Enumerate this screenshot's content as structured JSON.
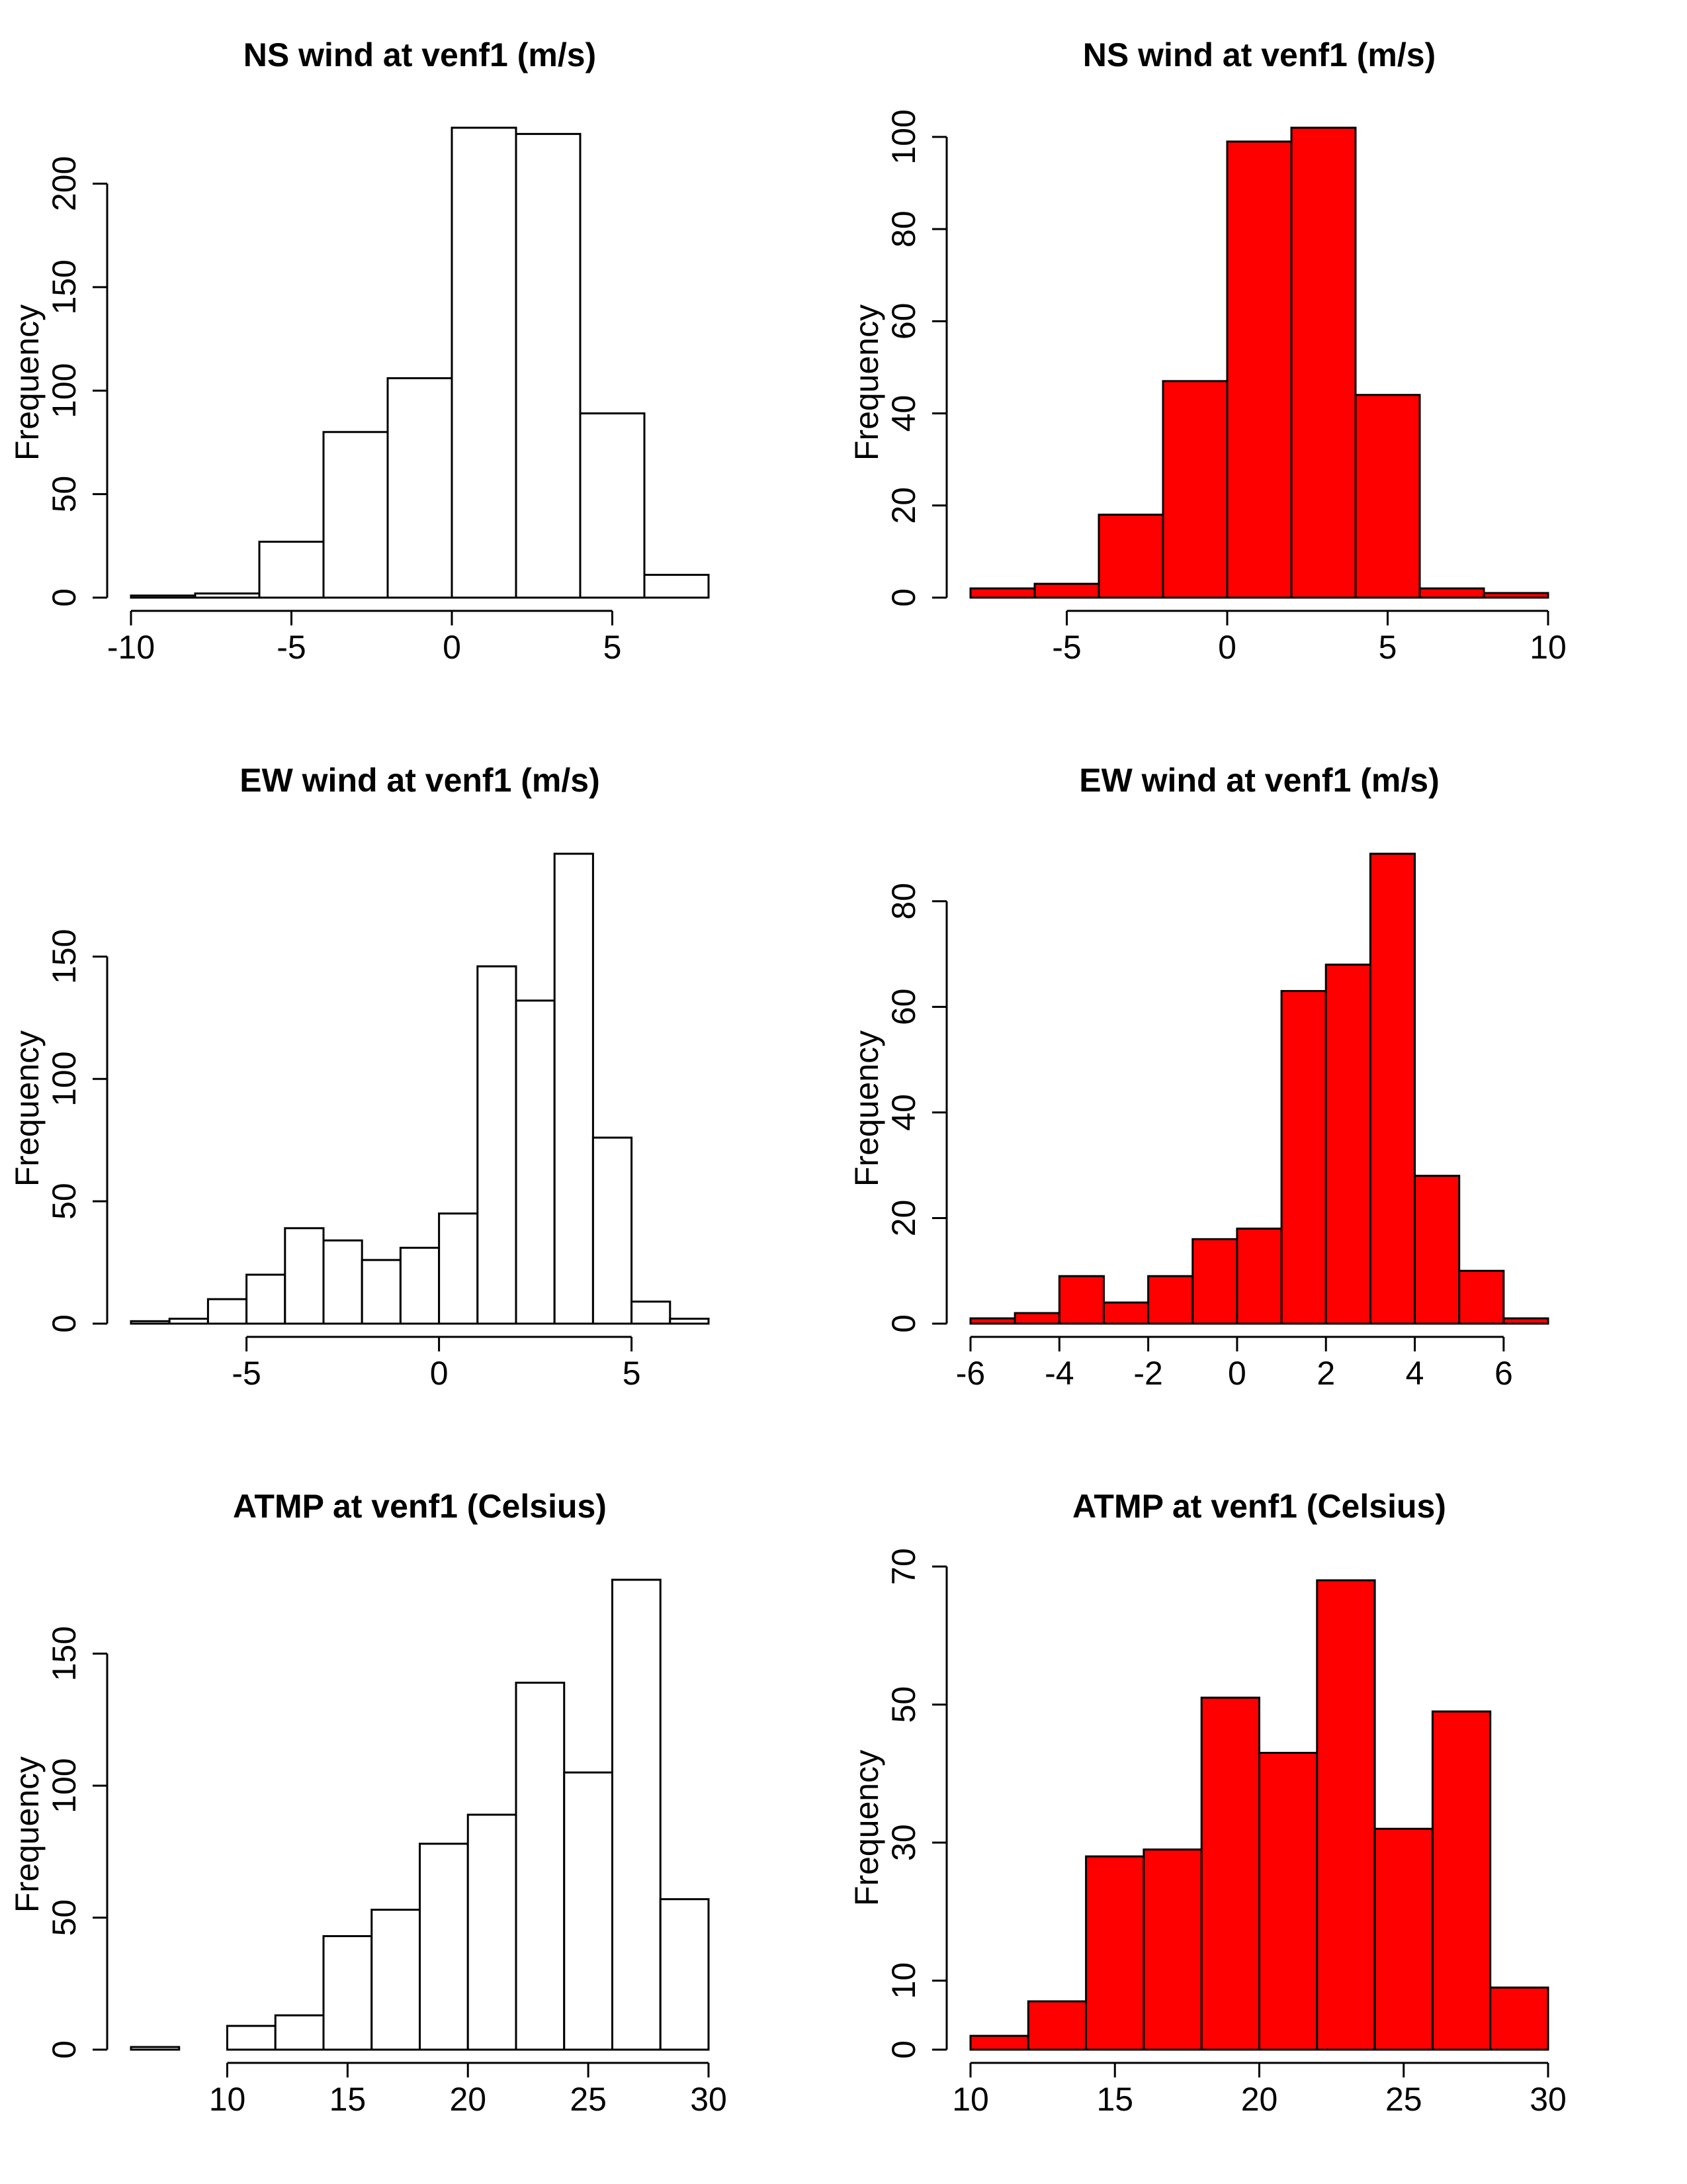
{
  "chart_data": [
    {
      "type": "bar",
      "title": "NS wind at venf1 (m/s)",
      "ylabel": "Frequency",
      "xlabel": "",
      "fill": "#ffffff",
      "bin_edges": [
        -10,
        -8,
        -6,
        -4,
        -2,
        0,
        2,
        4,
        6,
        8
      ],
      "values": [
        1,
        2,
        27,
        80,
        106,
        227,
        224,
        89,
        11
      ],
      "xticks": [
        -10,
        -5,
        0,
        5
      ],
      "xtick_labels": [
        "-10",
        "-5",
        "0",
        "5"
      ],
      "yticks": [
        0,
        50,
        100,
        150,
        200
      ],
      "ytick_labels": [
        "0",
        "50",
        "100",
        "150",
        "200"
      ]
    },
    {
      "type": "bar",
      "title": "NS wind at venf1 (m/s)",
      "ylabel": "Frequency",
      "xlabel": "",
      "fill": "#ff0000",
      "bin_edges": [
        -8,
        -6,
        -4,
        -2,
        0,
        2,
        4,
        6,
        8,
        10
      ],
      "values": [
        2,
        3,
        18,
        47,
        99,
        102,
        44,
        2,
        1
      ],
      "xticks": [
        -5,
        0,
        5,
        10
      ],
      "xtick_labels": [
        "-5",
        "0",
        "5",
        "10"
      ],
      "yticks": [
        0,
        20,
        40,
        60,
        80,
        100
      ],
      "ytick_labels": [
        "0",
        "20",
        "40",
        "60",
        "80",
        "100"
      ]
    },
    {
      "type": "bar",
      "title": "EW wind at venf1 (m/s)",
      "ylabel": "Frequency",
      "xlabel": "",
      "fill": "#ffffff",
      "bin_edges": [
        -8,
        -7,
        -6,
        -5,
        -4,
        -3,
        -2,
        -1,
        0,
        1,
        2,
        3,
        4,
        5,
        6,
        7
      ],
      "values": [
        1,
        2,
        10,
        20,
        39,
        34,
        26,
        31,
        45,
        146,
        132,
        192,
        76,
        9,
        2
      ],
      "xticks": [
        -5,
        0,
        5
      ],
      "xtick_labels": [
        "-5",
        "0",
        "5"
      ],
      "yticks": [
        0,
        50,
        100,
        150
      ],
      "ytick_labels": [
        "0",
        "50",
        "100",
        "150"
      ]
    },
    {
      "type": "bar",
      "title": "EW wind at venf1 (m/s)",
      "ylabel": "Frequency",
      "xlabel": "",
      "fill": "#ff0000",
      "bin_edges": [
        -6,
        -5,
        -4,
        -3,
        -2,
        -1,
        0,
        1,
        2,
        3,
        4,
        5,
        6,
        7
      ],
      "values": [
        1,
        2,
        9,
        4,
        9,
        16,
        18,
        63,
        68,
        89,
        28,
        10,
        1
      ],
      "xticks": [
        -6,
        -4,
        -2,
        0,
        2,
        4,
        6
      ],
      "xtick_labels": [
        "-6",
        "-4",
        "-2",
        "0",
        "2",
        "4",
        "6"
      ],
      "yticks": [
        0,
        20,
        40,
        60,
        80
      ],
      "ytick_labels": [
        "0",
        "20",
        "40",
        "60",
        "80"
      ]
    },
    {
      "type": "bar",
      "title": "ATMP at venf1 (Celsius)",
      "ylabel": "Frequency",
      "xlabel": "",
      "fill": "#ffffff",
      "bin_edges": [
        6,
        8,
        10,
        12,
        14,
        16,
        18,
        20,
        22,
        24,
        26,
        28,
        30
      ],
      "values": [
        1,
        0,
        9,
        13,
        43,
        53,
        78,
        89,
        139,
        105,
        178,
        57
      ],
      "xticks": [
        10,
        15,
        20,
        25,
        30
      ],
      "xtick_labels": [
        "10",
        "15",
        "20",
        "25",
        "30"
      ],
      "yticks": [
        0,
        50,
        100,
        150
      ],
      "ytick_labels": [
        "0",
        "50",
        "100",
        "150"
      ]
    },
    {
      "type": "bar",
      "title": "ATMP at venf1 (Celsius)",
      "ylabel": "Frequency",
      "xlabel": "",
      "fill": "#ff0000",
      "bin_edges": [
        10,
        12,
        14,
        16,
        18,
        20,
        22,
        24,
        26,
        28,
        30
      ],
      "values": [
        2,
        7,
        28,
        29,
        51,
        43,
        68,
        32,
        49,
        9
      ],
      "xticks": [
        10,
        15,
        20,
        25,
        30
      ],
      "xtick_labels": [
        "10",
        "15",
        "20",
        "25",
        "30"
      ],
      "yticks": [
        0,
        10,
        30,
        50,
        70
      ],
      "ytick_labels": [
        "0",
        "10",
        "30",
        "50",
        "70"
      ]
    }
  ]
}
